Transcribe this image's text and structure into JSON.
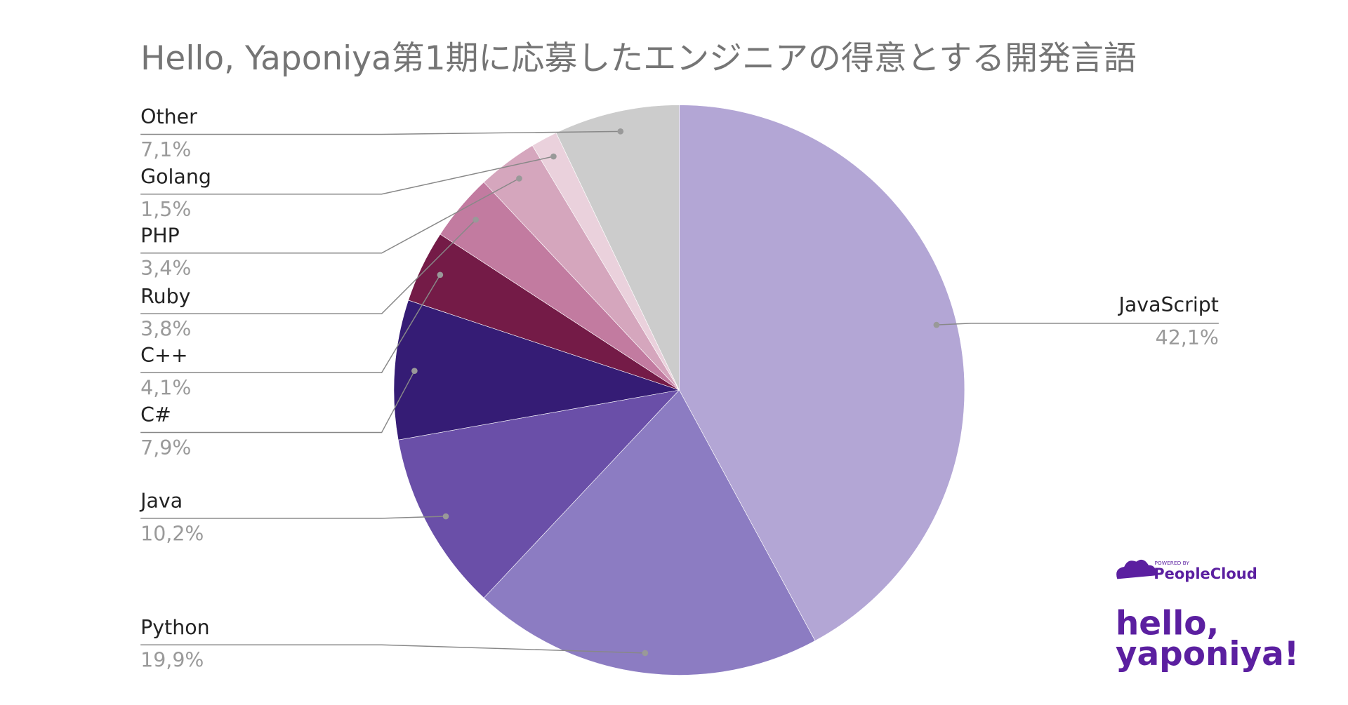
{
  "chart_data": {
    "type": "pie",
    "title": "Hello, Yaponiya第1期に応募したエンジニアの得意とする開発言語",
    "categories": [
      "JavaScript",
      "Python",
      "Java",
      "C#",
      "C++",
      "Ruby",
      "PHP",
      "Golang",
      "Other"
    ],
    "values": [
      42.1,
      19.9,
      10.2,
      7.9,
      4.1,
      3.8,
      3.4,
      1.5,
      7.1
    ],
    "value_labels": [
      "42,1%",
      "19,9%",
      "10,2%",
      "7,9%",
      "4,1%",
      "3,8%",
      "3,4%",
      "1,5%",
      "7,1%"
    ],
    "colors": [
      "#b3a6d5",
      "#8c7cc2",
      "#6a4fa8",
      "#351c75",
      "#741b47",
      "#c27ba0",
      "#d5a6bd",
      "#ead1dc",
      "#cccccc"
    ]
  },
  "branding": {
    "powered_by": "POWERED BY",
    "product": "PeopleCloud",
    "logo_line1": "hello,",
    "logo_line2": "yaponiya!"
  }
}
